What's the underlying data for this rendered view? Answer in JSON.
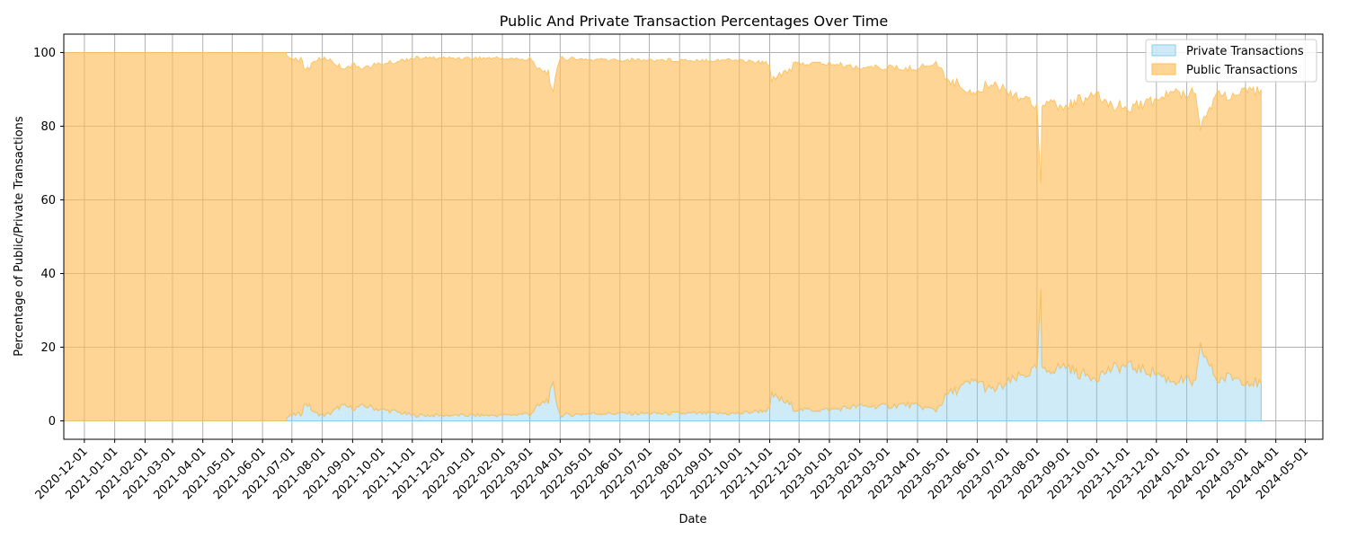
{
  "chart_data": {
    "type": "area",
    "title": "Public And Private Transaction Percentages Over Time",
    "xlabel": "Date",
    "ylabel": "Percentage of Public/Private Transactions",
    "xlim": [
      "2020-11-10",
      "2024-05-19"
    ],
    "ylim": [
      -5,
      105
    ],
    "grid": true,
    "legend_position": "top-right",
    "x_ticks": [
      "2020-12-01",
      "2021-01-01",
      "2021-02-01",
      "2021-03-01",
      "2021-04-01",
      "2021-05-01",
      "2021-06-01",
      "2021-07-01",
      "2021-08-01",
      "2021-09-01",
      "2021-10-01",
      "2021-11-01",
      "2021-12-01",
      "2022-01-01",
      "2022-02-01",
      "2022-03-01",
      "2022-04-01",
      "2022-05-01",
      "2022-06-01",
      "2022-07-01",
      "2022-08-01",
      "2022-09-01",
      "2022-10-01",
      "2022-11-01",
      "2022-12-01",
      "2023-01-01",
      "2023-02-01",
      "2023-03-01",
      "2023-04-01",
      "2023-05-01",
      "2023-06-01",
      "2023-07-01",
      "2023-08-01",
      "2023-09-01",
      "2023-10-01",
      "2023-11-01",
      "2023-12-01",
      "2024-01-01",
      "2024-02-01",
      "2024-03-01",
      "2024-04-01",
      "2024-05-01"
    ],
    "y_ticks": [
      0,
      20,
      40,
      60,
      80,
      100
    ],
    "x": [
      "2020-11-10",
      "2021-06-25",
      "2021-06-26",
      "2021-07-01",
      "2021-07-10",
      "2021-07-15",
      "2021-07-25",
      "2021-08-05",
      "2021-08-15",
      "2021-08-20",
      "2021-09-01",
      "2021-09-15",
      "2021-10-01",
      "2021-10-15",
      "2021-11-01",
      "2021-12-01",
      "2022-01-01",
      "2022-02-01",
      "2022-03-01",
      "2022-03-20",
      "2022-03-25",
      "2022-04-01",
      "2022-05-01",
      "2022-06-01",
      "2022-07-01",
      "2022-08-01",
      "2022-09-01",
      "2022-10-01",
      "2022-10-15",
      "2022-11-01",
      "2022-11-03",
      "2022-12-01",
      "2023-01-01",
      "2023-02-01",
      "2023-03-01",
      "2023-03-20",
      "2023-04-01",
      "2023-04-10",
      "2023-04-20",
      "2023-05-01",
      "2023-05-15",
      "2023-06-01",
      "2023-06-15",
      "2023-07-01",
      "2023-07-15",
      "2023-08-01",
      "2023-08-05",
      "2023-08-06",
      "2023-08-07",
      "2023-08-15",
      "2023-09-01",
      "2023-09-10",
      "2023-10-01",
      "2023-10-15",
      "2023-11-01",
      "2023-11-15",
      "2023-12-01",
      "2023-12-15",
      "2024-01-01",
      "2024-01-10",
      "2024-01-15",
      "2024-02-01",
      "2024-02-15",
      "2024-03-01",
      "2024-03-17"
    ],
    "series": [
      {
        "name": "Private Transactions",
        "color": "#87ceeb",
        "values": [
          0,
          0,
          1,
          1.5,
          2,
          5,
          2,
          1.5,
          3,
          4,
          3.5,
          4,
          3,
          2.5,
          1.5,
          1.5,
          1.5,
          1.5,
          2,
          6,
          9.5,
          1.5,
          2,
          2,
          2,
          2,
          2,
          2,
          2.5,
          3,
          7,
          3,
          3,
          4,
          4,
          4.5,
          4,
          3.5,
          3,
          7,
          9,
          11,
          8,
          10,
          12,
          14,
          35,
          15,
          13,
          14,
          15,
          13,
          12,
          14,
          15,
          14,
          13,
          11,
          11,
          10,
          20,
          11,
          12,
          11,
          10
        ]
      },
      {
        "name": "Public Transactions",
        "color": "#fdbf5a",
        "values": [
          100,
          100,
          99,
          98.5,
          98,
          95,
          98,
          98.5,
          97,
          96,
          96.5,
          96,
          97,
          97.5,
          98.5,
          98.5,
          98.5,
          98.5,
          98,
          94,
          90.5,
          98.5,
          98,
          98,
          98,
          98,
          98,
          98,
          97.5,
          97,
          93,
          97,
          97,
          96,
          96,
          95.5,
          96,
          96.5,
          97,
          93,
          91,
          89,
          92,
          90,
          88,
          86,
          65,
          85,
          87,
          86,
          85,
          87,
          88,
          86,
          85,
          86,
          87,
          89,
          89,
          90,
          80,
          89,
          88,
          89,
          90
        ]
      }
    ]
  }
}
